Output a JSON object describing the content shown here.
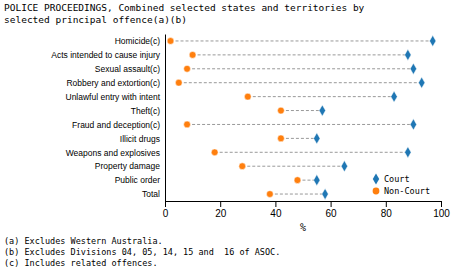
{
  "chart_data": {
    "type": "dumbbell",
    "title": [
      "POLICE PROCEEDINGS, Combined selected states and territories by",
      "selected principal offence(a)(b)"
    ],
    "categories": [
      "Homicide(c)",
      "Acts intended to cause injury",
      "Sexual assault(c)",
      "Robbery and extortion(c)",
      "Unlawful entry with intent",
      "Theft(c)",
      "Fraud and deception(c)",
      "Illicit drugs",
      "Weapons and explosives",
      "Property damage",
      "Public order",
      "Total"
    ],
    "series": [
      {
        "name": "Court",
        "marker": "diamond",
        "values": [
          97,
          88,
          90,
          93,
          83,
          57,
          90,
          55,
          88,
          65,
          55,
          58
        ]
      },
      {
        "name": "Non-Court",
        "marker": "circle",
        "values": [
          2,
          10,
          8,
          5,
          30,
          42,
          8,
          42,
          18,
          28,
          48,
          38
        ]
      }
    ],
    "orientation": "horizontal",
    "xlabel": "%",
    "xlim": [
      0,
      100
    ],
    "xticks": [
      0,
      20,
      40,
      60,
      80,
      100
    ],
    "grid": false,
    "legend": "lower right",
    "annotations": [
      "(a) Excludes Western Australia.",
      "(b) Excludes Divisions 04, 05, 14, 15 and  16 of ASOC.",
      "(c) Includes related offences."
    ]
  }
}
